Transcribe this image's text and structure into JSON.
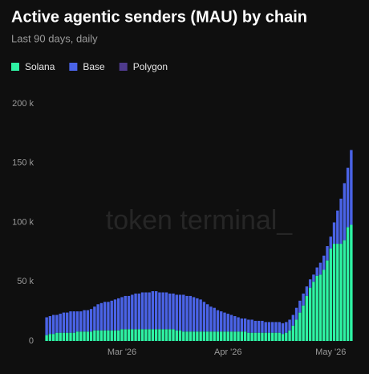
{
  "chart_data": {
    "type": "stacked-bar",
    "title": "Active agentic senders (MAU) by chain",
    "subtitle": "Last 90 days, daily",
    "watermark": "token terminal_",
    "legend": "top-left",
    "grid": false,
    "categories": [
      null,
      null,
      null,
      null,
      null,
      null,
      null,
      null,
      null,
      null,
      null,
      null,
      null,
      null,
      null,
      null,
      null,
      null,
      null,
      null,
      null,
      null,
      "Mar '26",
      null,
      null,
      null,
      null,
      null,
      null,
      null,
      null,
      null,
      null,
      null,
      null,
      null,
      null,
      null,
      null,
      null,
      null,
      null,
      null,
      null,
      null,
      null,
      null,
      null,
      null,
      null,
      null,
      null,
      null,
      "Apr '26",
      null,
      null,
      null,
      null,
      null,
      null,
      null,
      null,
      null,
      null,
      null,
      null,
      null,
      null,
      null,
      null,
      null,
      null,
      null,
      null,
      null,
      null,
      null,
      null,
      null,
      null,
      null,
      null,
      null,
      "May '26",
      null,
      null,
      null,
      null,
      null,
      null
    ],
    "series": [
      {
        "name": "Solana",
        "color": "#2ef3a4",
        "values": [
          5000,
          6000,
          6000,
          7000,
          7000,
          7000,
          7000,
          7000,
          7000,
          8000,
          8000,
          8000,
          8000,
          8000,
          9000,
          9000,
          9000,
          9000,
          9000,
          9000,
          9000,
          9000,
          10000,
          10000,
          10000,
          10000,
          10000,
          10000,
          10000,
          10000,
          10000,
          10000,
          10000,
          10000,
          10000,
          10000,
          10000,
          10000,
          9000,
          9000,
          8000,
          8000,
          8000,
          8000,
          8000,
          8000,
          8000,
          8000,
          8000,
          8000,
          8000,
          8000,
          8000,
          8000,
          8000,
          8000,
          8000,
          8000,
          8000,
          7000,
          7000,
          7000,
          7000,
          7000,
          7000,
          7000,
          7000,
          7000,
          7000,
          6000,
          7000,
          9000,
          13000,
          18000,
          24000,
          30000,
          38000,
          45000,
          50000,
          55000,
          56000,
          60000,
          68000,
          78000,
          82000,
          82000,
          82000,
          85000,
          96000,
          98000
        ]
      },
      {
        "name": "Base",
        "color": "#4a63e6",
        "values": [
          15000,
          15000,
          16000,
          15000,
          16000,
          17000,
          17000,
          18000,
          18000,
          17000,
          17000,
          18000,
          18000,
          19000,
          20000,
          22000,
          23000,
          24000,
          24000,
          25000,
          26000,
          27000,
          27000,
          28000,
          28000,
          29000,
          30000,
          30000,
          31000,
          31000,
          31000,
          32000,
          32000,
          31000,
          31000,
          31000,
          30000,
          30000,
          30000,
          30000,
          31000,
          30000,
          30000,
          29000,
          28000,
          27000,
          25000,
          23000,
          21000,
          20000,
          18000,
          17000,
          16000,
          15000,
          14000,
          13000,
          12000,
          11000,
          11000,
          11000,
          11000,
          10000,
          10000,
          10000,
          9000,
          9000,
          9000,
          9000,
          9000,
          9000,
          9000,
          9000,
          9000,
          10000,
          10000,
          10000,
          8000,
          7000,
          6000,
          7000,
          10000,
          12000,
          12000,
          10000,
          18000,
          28000,
          38000,
          48000,
          50000,
          63000
        ]
      },
      {
        "name": "Polygon",
        "color": "#4e3a8c",
        "values": [
          0,
          0,
          0,
          0,
          0,
          0,
          0,
          0,
          0,
          0,
          0,
          0,
          0,
          0,
          0,
          0,
          0,
          0,
          0,
          0,
          0,
          0,
          0,
          0,
          0,
          0,
          0,
          0,
          0,
          0,
          0,
          0,
          0,
          0,
          0,
          0,
          0,
          0,
          0,
          0,
          0,
          0,
          0,
          0,
          0,
          0,
          0,
          0,
          0,
          0,
          0,
          0,
          0,
          0,
          0,
          0,
          0,
          0,
          0,
          0,
          0,
          0,
          0,
          0,
          0,
          0,
          0,
          0,
          0,
          0,
          0,
          0,
          0,
          0,
          0,
          0,
          0,
          0,
          0,
          0,
          0,
          0,
          0,
          0,
          0,
          0,
          0,
          0,
          0,
          0
        ]
      }
    ],
    "ylim": [
      0,
      200000
    ],
    "yticks": [
      0,
      {
        "value": 50000,
        "label": "50 k"
      },
      {
        "value": 100000,
        "label": "100 k"
      },
      {
        "value": 150000,
        "label": "150 k"
      },
      {
        "value": 200000,
        "label": "200 k"
      }
    ]
  }
}
